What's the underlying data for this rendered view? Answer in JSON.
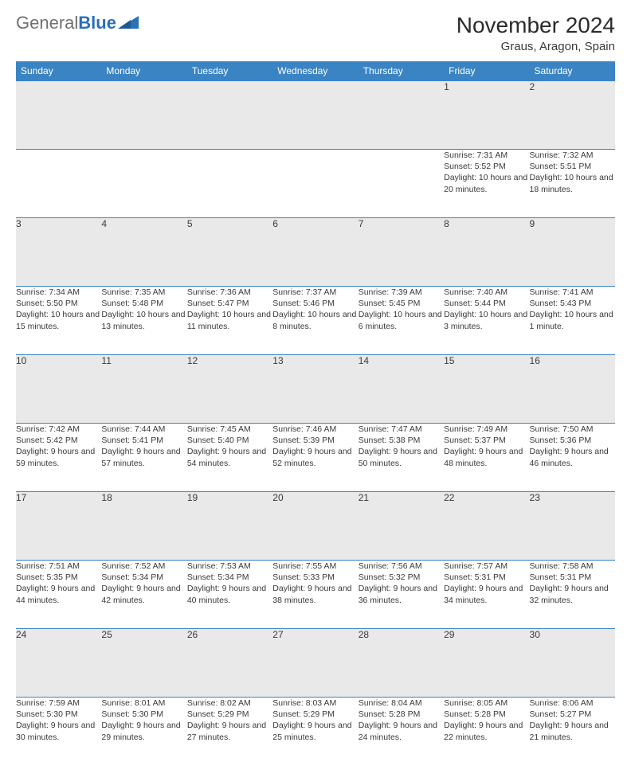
{
  "brand": {
    "part1": "General",
    "part2": "Blue"
  },
  "title": "November 2024",
  "location": "Graus, Aragon, Spain",
  "colors": {
    "header_bg": "#3b84c4",
    "header_text": "#ffffff",
    "daynum_bg": "#e9e9e9",
    "border": "#3b84c4",
    "text": "#3a3a3a",
    "logo_gray": "#707070",
    "logo_blue": "#2a71b8"
  },
  "weekdays": [
    "Sunday",
    "Monday",
    "Tuesday",
    "Wednesday",
    "Thursday",
    "Friday",
    "Saturday"
  ],
  "weeks": [
    {
      "nums": [
        "",
        "",
        "",
        "",
        "",
        "1",
        "2"
      ],
      "cells": [
        null,
        null,
        null,
        null,
        null,
        {
          "sr": "Sunrise: 7:31 AM",
          "ss": "Sunset: 5:52 PM",
          "dl": "Daylight: 10 hours and 20 minutes."
        },
        {
          "sr": "Sunrise: 7:32 AM",
          "ss": "Sunset: 5:51 PM",
          "dl": "Daylight: 10 hours and 18 minutes."
        }
      ]
    },
    {
      "nums": [
        "3",
        "4",
        "5",
        "6",
        "7",
        "8",
        "9"
      ],
      "cells": [
        {
          "sr": "Sunrise: 7:34 AM",
          "ss": "Sunset: 5:50 PM",
          "dl": "Daylight: 10 hours and 15 minutes."
        },
        {
          "sr": "Sunrise: 7:35 AM",
          "ss": "Sunset: 5:48 PM",
          "dl": "Daylight: 10 hours and 13 minutes."
        },
        {
          "sr": "Sunrise: 7:36 AM",
          "ss": "Sunset: 5:47 PM",
          "dl": "Daylight: 10 hours and 11 minutes."
        },
        {
          "sr": "Sunrise: 7:37 AM",
          "ss": "Sunset: 5:46 PM",
          "dl": "Daylight: 10 hours and 8 minutes."
        },
        {
          "sr": "Sunrise: 7:39 AM",
          "ss": "Sunset: 5:45 PM",
          "dl": "Daylight: 10 hours and 6 minutes."
        },
        {
          "sr": "Sunrise: 7:40 AM",
          "ss": "Sunset: 5:44 PM",
          "dl": "Daylight: 10 hours and 3 minutes."
        },
        {
          "sr": "Sunrise: 7:41 AM",
          "ss": "Sunset: 5:43 PM",
          "dl": "Daylight: 10 hours and 1 minute."
        }
      ]
    },
    {
      "nums": [
        "10",
        "11",
        "12",
        "13",
        "14",
        "15",
        "16"
      ],
      "cells": [
        {
          "sr": "Sunrise: 7:42 AM",
          "ss": "Sunset: 5:42 PM",
          "dl": "Daylight: 9 hours and 59 minutes."
        },
        {
          "sr": "Sunrise: 7:44 AM",
          "ss": "Sunset: 5:41 PM",
          "dl": "Daylight: 9 hours and 57 minutes."
        },
        {
          "sr": "Sunrise: 7:45 AM",
          "ss": "Sunset: 5:40 PM",
          "dl": "Daylight: 9 hours and 54 minutes."
        },
        {
          "sr": "Sunrise: 7:46 AM",
          "ss": "Sunset: 5:39 PM",
          "dl": "Daylight: 9 hours and 52 minutes."
        },
        {
          "sr": "Sunrise: 7:47 AM",
          "ss": "Sunset: 5:38 PM",
          "dl": "Daylight: 9 hours and 50 minutes."
        },
        {
          "sr": "Sunrise: 7:49 AM",
          "ss": "Sunset: 5:37 PM",
          "dl": "Daylight: 9 hours and 48 minutes."
        },
        {
          "sr": "Sunrise: 7:50 AM",
          "ss": "Sunset: 5:36 PM",
          "dl": "Daylight: 9 hours and 46 minutes."
        }
      ]
    },
    {
      "nums": [
        "17",
        "18",
        "19",
        "20",
        "21",
        "22",
        "23"
      ],
      "cells": [
        {
          "sr": "Sunrise: 7:51 AM",
          "ss": "Sunset: 5:35 PM",
          "dl": "Daylight: 9 hours and 44 minutes."
        },
        {
          "sr": "Sunrise: 7:52 AM",
          "ss": "Sunset: 5:34 PM",
          "dl": "Daylight: 9 hours and 42 minutes."
        },
        {
          "sr": "Sunrise: 7:53 AM",
          "ss": "Sunset: 5:34 PM",
          "dl": "Daylight: 9 hours and 40 minutes."
        },
        {
          "sr": "Sunrise: 7:55 AM",
          "ss": "Sunset: 5:33 PM",
          "dl": "Daylight: 9 hours and 38 minutes."
        },
        {
          "sr": "Sunrise: 7:56 AM",
          "ss": "Sunset: 5:32 PM",
          "dl": "Daylight: 9 hours and 36 minutes."
        },
        {
          "sr": "Sunrise: 7:57 AM",
          "ss": "Sunset: 5:31 PM",
          "dl": "Daylight: 9 hours and 34 minutes."
        },
        {
          "sr": "Sunrise: 7:58 AM",
          "ss": "Sunset: 5:31 PM",
          "dl": "Daylight: 9 hours and 32 minutes."
        }
      ]
    },
    {
      "nums": [
        "24",
        "25",
        "26",
        "27",
        "28",
        "29",
        "30"
      ],
      "cells": [
        {
          "sr": "Sunrise: 7:59 AM",
          "ss": "Sunset: 5:30 PM",
          "dl": "Daylight: 9 hours and 30 minutes."
        },
        {
          "sr": "Sunrise: 8:01 AM",
          "ss": "Sunset: 5:30 PM",
          "dl": "Daylight: 9 hours and 29 minutes."
        },
        {
          "sr": "Sunrise: 8:02 AM",
          "ss": "Sunset: 5:29 PM",
          "dl": "Daylight: 9 hours and 27 minutes."
        },
        {
          "sr": "Sunrise: 8:03 AM",
          "ss": "Sunset: 5:29 PM",
          "dl": "Daylight: 9 hours and 25 minutes."
        },
        {
          "sr": "Sunrise: 8:04 AM",
          "ss": "Sunset: 5:28 PM",
          "dl": "Daylight: 9 hours and 24 minutes."
        },
        {
          "sr": "Sunrise: 8:05 AM",
          "ss": "Sunset: 5:28 PM",
          "dl": "Daylight: 9 hours and 22 minutes."
        },
        {
          "sr": "Sunrise: 8:06 AM",
          "ss": "Sunset: 5:27 PM",
          "dl": "Daylight: 9 hours and 21 minutes."
        }
      ]
    }
  ]
}
